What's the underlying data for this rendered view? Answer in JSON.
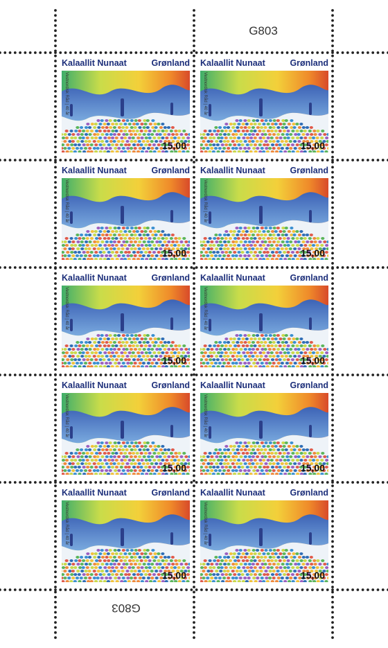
{
  "sheet": {
    "label": "G803"
  },
  "stamp": {
    "country_kl": "Kalaallit Nunaat",
    "country_da": "Grønland",
    "value": "15,00",
    "caption": "Vestnordisk Råd | 40 år"
  }
}
